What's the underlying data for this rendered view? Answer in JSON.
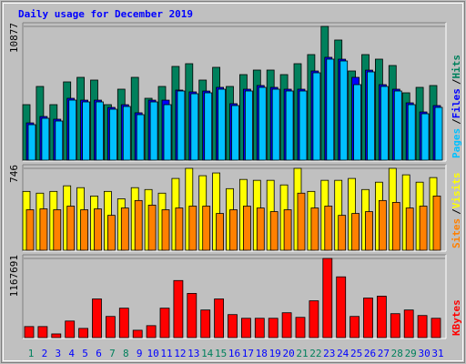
{
  "title": "Daily usage for December 2019",
  "legend_separator": "/",
  "chart_data": [
    {
      "type": "bar",
      "ylim": [
        0,
        10877
      ],
      "yticks": [
        10877
      ],
      "series": [
        {
          "name": "Hits",
          "color": "#00805C",
          "values": [
            4514,
            5994,
            4514,
            6364,
            6734,
            6512,
            4514,
            5772,
            6734,
            5032,
            5994,
            7622,
            7844,
            6512,
            7548,
            5994,
            6956,
            7326,
            7326,
            6956,
            7844,
            8584,
            10877,
            9768,
            7252,
            8584,
            8214,
            7696,
            5476,
            5920,
            6068
          ]
        },
        {
          "name": "Files",
          "color": "#0000FF",
          "values": [
            3030,
            3550,
            3330,
            5030,
            4880,
            4880,
            4290,
            4510,
            3850,
            4880,
            4880,
            5698,
            5550,
            5620,
            5920,
            4590,
            5770,
            6070,
            5920,
            5770,
            5770,
            7250,
            8362,
            8210,
            6734,
            7320,
            6140,
            5770,
            4660,
            3920,
            4440
          ]
        },
        {
          "name": "Pages",
          "color": "#00C0FF",
          "values": [
            2886,
            3404,
            3182,
            4884,
            4736,
            4736,
            4144,
            4366,
            3700,
            4736,
            4514,
            5624,
            5402,
            5476,
            5772,
            4440,
            5624,
            5920,
            5772,
            5624,
            5624,
            7104,
            8214,
            8066,
            6142,
            7178,
            5994,
            5624,
            4514,
            3774,
            4292
          ]
        }
      ]
    },
    {
      "type": "bar",
      "ylim": [
        0,
        746
      ],
      "yticks": [
        746
      ],
      "series": [
        {
          "name": "Visits",
          "color": "#FFFF00",
          "values": [
            536,
            520,
            536,
            587,
            570,
            494,
            536,
            469,
            570,
            553,
            520,
            654,
            746,
            679,
            704,
            561,
            645,
            637,
            637,
            595,
            746,
            536,
            637,
            637,
            654,
            553,
            620,
            746,
            687,
            620,
            662
          ]
        },
        {
          "name": "Sites",
          "color": "#FF8000",
          "values": [
            369,
            377,
            369,
            402,
            369,
            377,
            318,
            385,
            453,
            411,
            369,
            385,
            402,
            402,
            335,
            369,
            402,
            385,
            352,
            369,
            520,
            385,
            402,
            318,
            335,
            352,
            453,
            436,
            385,
            402,
            494
          ]
        }
      ]
    },
    {
      "type": "bar",
      "ylim": [
        0,
        1167691
      ],
      "yticks": [
        1167691
      ],
      "categories": [
        "1",
        "2",
        "3",
        "4",
        "5",
        "6",
        "7",
        "8",
        "9",
        "10",
        "11",
        "12",
        "13",
        "14",
        "15",
        "16",
        "17",
        "18",
        "19",
        "20",
        "21",
        "22",
        "23",
        "24",
        "25",
        "26",
        "27",
        "28",
        "29",
        "30",
        "31"
      ],
      "category_colors": [
        "#00805C",
        "#0000FF",
        "#0000FF",
        "#0000FF",
        "#0000FF",
        "#0000FF",
        "#00805C",
        "#00805C",
        "#0000FF",
        "#0000FF",
        "#0000FF",
        "#0000FF",
        "#0000FF",
        "#00805C",
        "#00805C",
        "#0000FF",
        "#0000FF",
        "#0000FF",
        "#0000FF",
        "#0000FF",
        "#00805C",
        "#00805C",
        "#0000FF",
        "#0000FF",
        "#0000FF",
        "#0000FF",
        "#0000FF",
        "#00805C",
        "#00805C",
        "#0000FF",
        "#0000FF"
      ],
      "series": [
        {
          "name": "KBytes",
          "color": "#FF0000",
          "values": [
            162936,
            162936,
            54312,
            244404,
            135780,
            570276,
            312294,
            434496,
            108624,
            176514,
            434496,
            841836,
            651744,
            407340,
            570276,
            339450,
            285138,
            285138,
            285138,
            366606,
            298716,
            543120,
            1167691,
            896148,
            312294,
            583854,
            611010,
            353028,
            407340,
            325872,
            285138
          ]
        }
      ]
    }
  ]
}
